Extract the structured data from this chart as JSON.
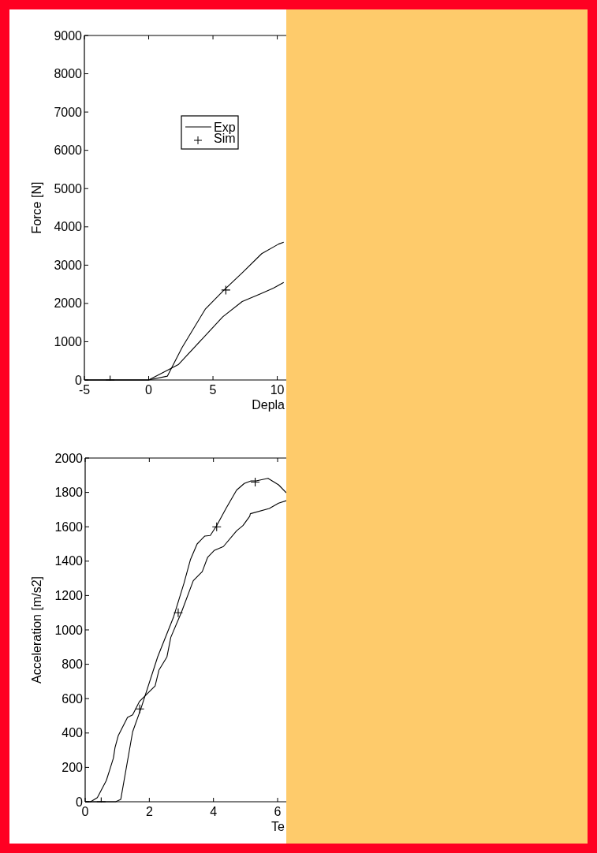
{
  "chart_data": [
    {
      "type": "line",
      "xlabel": "Depla",
      "ylabel": "Force [N]",
      "xlim": [
        -5,
        10.7
      ],
      "xticks": [
        -5,
        0,
        5,
        10
      ],
      "ylim": [
        0,
        9000
      ],
      "yticks": [
        0,
        1000,
        2000,
        3000,
        4000,
        5000,
        6000,
        7000,
        8000,
        9000
      ],
      "grid": false,
      "legend": "top right",
      "series": [
        {
          "name": "Exp",
          "color": "#000000",
          "x": [
            -5,
            0,
            2.3,
            4.24,
            5.76,
            7.27,
            8.69,
            9.7,
            10.5
          ],
          "values": [
            0,
            0,
            400,
            1100,
            1650,
            2050,
            2250,
            2400,
            2550
          ]
        },
        {
          "color": "#000000",
          "x": [
            -5,
            0,
            1.45,
            2.6,
            4.4,
            5.86,
            7.27,
            8.79,
            10.1,
            10.5
          ],
          "values": [
            0,
            0,
            100,
            850,
            1850,
            2350,
            2800,
            3300,
            3550,
            3600
          ]
        },
        {
          "name": "Sim",
          "type": "scatter",
          "marker": "cross",
          "color": "#000000",
          "x": [
            -3,
            6
          ],
          "values": [
            0,
            2350
          ]
        }
      ]
    },
    {
      "type": "line",
      "xlabel": "Te",
      "ylabel": "Acceleration [m/s2]",
      "xlim": [
        0,
        6.27
      ],
      "xticks": [
        0,
        2,
        4,
        6
      ],
      "ylim": [
        0,
        2000
      ],
      "yticks": [
        0,
        200,
        400,
        600,
        800,
        1000,
        1200,
        1400,
        1600,
        1800,
        2000
      ],
      "grid": false,
      "legend": false,
      "series": [
        {
          "color": "#000000",
          "x": [
            0,
            0.17,
            0.38,
            0.66,
            0.79,
            0.88,
            0.93,
            1.03,
            1.32,
            1.48,
            1.69,
            2.18,
            2.3,
            2.55,
            2.67,
            3.0,
            3.37,
            3.65,
            3.82,
            4.02,
            4.31,
            4.72,
            4.92,
            5.13,
            5.15,
            5.74,
            6.03,
            6.27
          ],
          "values": [
            0,
            0,
            24,
            124,
            200,
            254,
            315,
            384,
            491,
            506,
            583,
            674,
            766,
            843,
            957,
            1102,
            1286,
            1339,
            1423,
            1462,
            1485,
            1576,
            1607,
            1661,
            1676,
            1706,
            1737,
            1752
          ]
        },
        {
          "color": "#000000",
          "x": [
            0,
            0.95,
            1.11,
            1.48,
            1.73,
            2.26,
            2.75,
            3.08,
            3.28,
            3.49,
            3.73,
            3.9,
            4.1,
            4.39,
            4.72,
            4.96,
            5.17,
            5.33,
            5.7,
            6.03,
            6.27
          ],
          "values": [
            0,
            0,
            14,
            407,
            537,
            843,
            1072,
            1271,
            1408,
            1500,
            1546,
            1549,
            1607,
            1706,
            1813,
            1852,
            1867,
            1867,
            1882,
            1844,
            1798
          ]
        },
        {
          "type": "scatter",
          "marker": "cross",
          "color": "#000000",
          "x": [
            0.5,
            1.7,
            2.9,
            4.1,
            5.3
          ],
          "values": [
            0,
            540,
            1100,
            1600,
            1860
          ]
        }
      ]
    }
  ]
}
